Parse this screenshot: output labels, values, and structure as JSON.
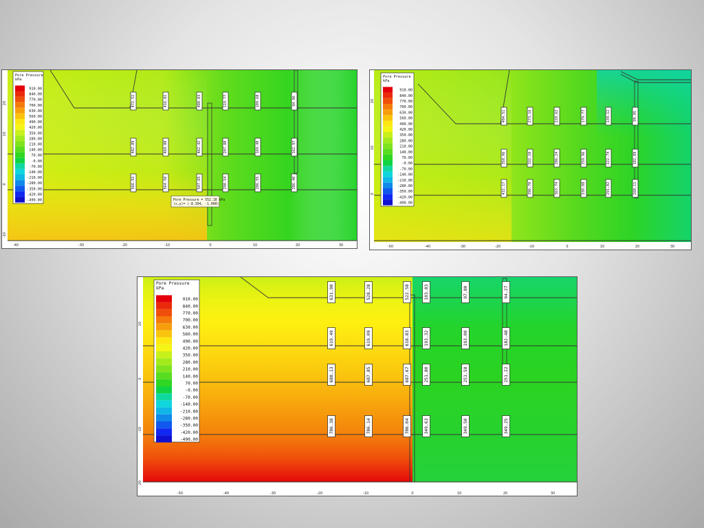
{
  "legend": {
    "title": "Pore Pressure",
    "unit": "kPa",
    "values": [
      "910.00",
      "840.00",
      "770.00",
      "700.00",
      "630.00",
      "560.00",
      "490.00",
      "420.00",
      "350.00",
      "280.00",
      "210.00",
      "140.00",
      "70.00",
      "-0.00",
      "-70.00",
      "-140.00",
      "-210.00",
      "-280.00",
      "-350.00",
      "-420.00",
      "-490.00"
    ],
    "colors": [
      "#e3000b",
      "#ea2a0b",
      "#f04f0b",
      "#f47a0c",
      "#f79e0d",
      "#fac40e",
      "#fde710",
      "#f4f514",
      "#c8f01a",
      "#a3ea1c",
      "#7fe31e",
      "#58dc20",
      "#2fd722",
      "#10d444",
      "#10d9a0",
      "#10d6dd",
      "#10b7e6",
      "#1089ea",
      "#1058ee",
      "#1028f2",
      "#1010d0"
    ]
  },
  "panels": [
    {
      "id": "top-left",
      "x_ticks": [
        "-40",
        "-30",
        "-20",
        "-10",
        "0",
        "10",
        "20",
        "30"
      ],
      "y_ticks": [
        "20",
        "10",
        "0",
        "-10"
      ],
      "label_rows": [
        [
          "472.52",
          "416.82",
          "400.03",
          "119.77",
          "109.68",
          "94.96"
        ],
        [
          "482.89",
          "469.88",
          "462.42",
          "207.88",
          "169.48",
          "162.97"
        ],
        [
          "566.92",
          "564.50",
          "547.65",
          "290.54",
          "286.55",
          "286.40"
        ]
      ],
      "tooltip": {
        "line1": "Pore Pressure = 552.18 kPa",
        "line2": "(x,y)= (-8.394, -1.000)"
      }
    },
    {
      "id": "top-right",
      "x_ticks": [
        "-50",
        "-40",
        "-30",
        "-20",
        "-10",
        "0",
        "10",
        "20",
        "30"
      ],
      "y_ticks": [
        "20",
        "10",
        "0"
      ],
      "label_rows": [
        [
          "404.51",
          "273.16",
          "220.62",
          "179.77",
          "139.12",
          "99.95"
        ],
        [
          "358.96",
          "332.10",
          "286.24",
          "259.96",
          "222.74",
          "182.89"
        ],
        [
          "432.17",
          "396.70",
          "363.74",
          "330.08",
          "291.82",
          "268.11"
        ]
      ]
    },
    {
      "id": "bottom",
      "x_ticks": [
        "-50",
        "-40",
        "-30",
        "-20",
        "-10",
        "0",
        "10",
        "20",
        "30"
      ],
      "y_ticks": [
        "10",
        "0",
        "-10",
        "-20"
      ],
      "label_rows": [
        [
          "631.90",
          "528.28",
          "522.58",
          "103.83",
          "97.80",
          "94.27"
        ],
        [
          "619.49",
          "619.09",
          "618.83",
          "193.32",
          "193.00",
          "182.48"
        ],
        [
          "688.13",
          "687.85",
          "687.67",
          "251.80",
          "251.58",
          "251.22"
        ],
        [
          "786.38",
          "786.14",
          "786.04",
          "349.63",
          "349.50",
          "349.25"
        ]
      ]
    }
  ]
}
